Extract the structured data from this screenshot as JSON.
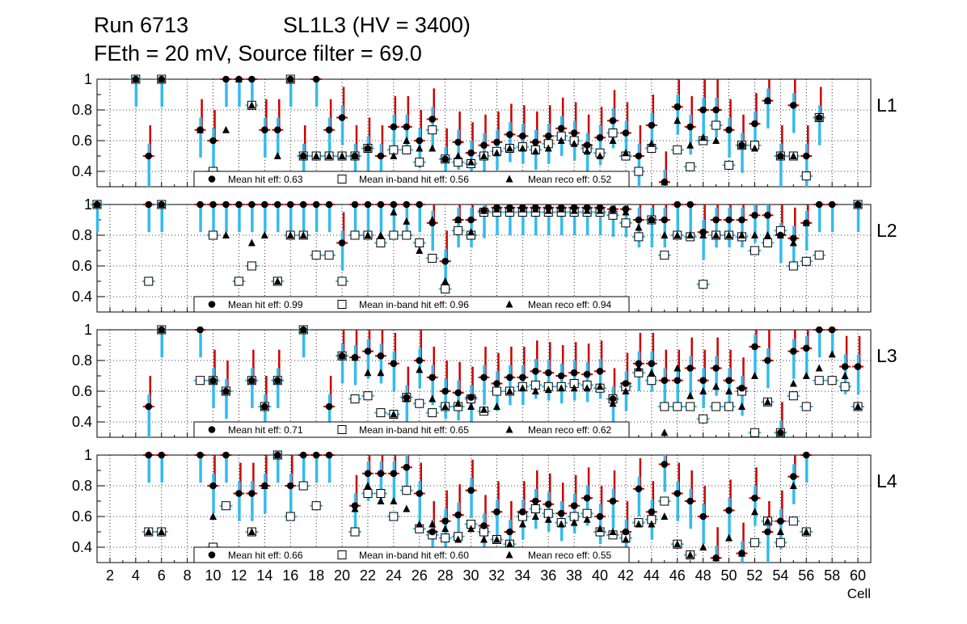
{
  "header": {
    "run": "Run 6713",
    "chamber": "SL1L3 (HV = 3400)",
    "settings": "FEth = 20 mV, Source filter = 69.0"
  },
  "colors": {
    "hit": "#000000",
    "inband": "#ffffff",
    "reco": "#000000",
    "err_red": "#cc0000",
    "err_blue": "#33bbee",
    "err_purple": "#7722aa"
  },
  "chart_data": [
    {
      "type": "scatter",
      "title": "L1",
      "xlabel": "Cell",
      "ylabel": "",
      "xlim": [
        1,
        61
      ],
      "ylim": [
        0.3,
        1.0
      ],
      "yticks": [
        0.4,
        0.6,
        0.8,
        1
      ],
      "xticks": [
        2,
        4,
        6,
        8,
        10,
        12,
        14,
        16,
        18,
        20,
        22,
        24,
        26,
        28,
        30,
        32,
        34,
        36,
        38,
        40,
        42,
        44,
        46,
        48,
        50,
        52,
        54,
        56,
        58,
        60
      ],
      "legend": {
        "hit": "Mean hit  eff: 0.63",
        "inband": "Mean in-band hit eff: 0.56",
        "reco": "Mean reco eff: 0.52"
      },
      "series": [
        {
          "name": "hit eff",
          "values": [
            null,
            null,
            null,
            1,
            0.5,
            1,
            null,
            null,
            0.67,
            0.6,
            1,
            1,
            1,
            0.67,
            0.67,
            1,
            0.5,
            1,
            0.67,
            0.75,
            0.5,
            0.55,
            0.5,
            0.69,
            0.69,
            0.6,
            0.74,
            0.48,
            0.59,
            0.52,
            0.57,
            0.59,
            0.64,
            0.63,
            0.59,
            0.63,
            0.68,
            0.65,
            0.57,
            0.62,
            0.73,
            0.65,
            0.5,
            0.7,
            0.33,
            0.82,
            0.69,
            0.8,
            0.8,
            0.67,
            0.57,
            0.71,
            0.86,
            0.5,
            0.83,
            0.5,
            0.75,
            null,
            null,
            null
          ]
        },
        {
          "name": "in-band hit eff",
          "values": [
            null,
            null,
            null,
            1,
            null,
            1,
            null,
            null,
            null,
            0.4,
            null,
            null,
            0.83,
            null,
            null,
            1,
            0.5,
            0.5,
            0.5,
            0.5,
            0.5,
            0.55,
            null,
            0.54,
            0.54,
            0.46,
            0.67,
            0.48,
            0.46,
            0.45,
            0.5,
            0.53,
            0.55,
            0.56,
            0.54,
            0.58,
            0.63,
            0.6,
            0.55,
            0.52,
            0.65,
            0.5,
            0.4,
            0.55,
            null,
            0.54,
            0.43,
            0.6,
            0.7,
            0.44,
            0.57,
            0.57,
            null,
            0.5,
            0.5,
            0.37,
            0.75,
            null,
            null,
            null
          ]
        },
        {
          "name": "reco eff",
          "values": [
            null,
            null,
            null,
            1,
            null,
            1,
            null,
            null,
            0.67,
            null,
            0.67,
            1,
            0.83,
            null,
            0.5,
            1,
            0.5,
            0.5,
            0.5,
            0.5,
            0.5,
            0.55,
            null,
            0.5,
            0.6,
            0.55,
            0.55,
            0.48,
            0.5,
            0.46,
            0.5,
            0.52,
            0.55,
            0.55,
            0.53,
            0.55,
            0.6,
            0.58,
            0.53,
            0.5,
            0.6,
            0.52,
            null,
            0.58,
            0.33,
            0.73,
            0.57,
            0.62,
            0.6,
            null,
            0.57,
            0.55,
            0.86,
            0.5,
            0.5,
            null,
            0.75,
            null,
            null,
            null
          ]
        }
      ]
    },
    {
      "type": "scatter",
      "title": "L2",
      "xlabel": "Cell",
      "ylabel": "",
      "xlim": [
        1,
        61
      ],
      "ylim": [
        0.3,
        1.0
      ],
      "yticks": [
        0.4,
        0.6,
        0.8,
        1
      ],
      "xticks": [
        2,
        4,
        6,
        8,
        10,
        12,
        14,
        16,
        18,
        20,
        22,
        24,
        26,
        28,
        30,
        32,
        34,
        36,
        38,
        40,
        42,
        44,
        46,
        48,
        50,
        52,
        54,
        56,
        58,
        60
      ],
      "legend": {
        "hit": "Mean hit  eff: 0.99",
        "inband": "Mean in-band hit eff: 0.96",
        "reco": "Mean reco eff: 0.94"
      },
      "series": [
        {
          "name": "hit eff",
          "values": [
            1,
            null,
            null,
            null,
            1,
            1,
            null,
            null,
            1,
            1,
            1,
            1,
            1,
            1,
            1,
            1,
            1,
            1,
            1,
            0.75,
            1,
            1,
            1,
            1,
            1,
            1,
            0.88,
            0.63,
            0.9,
            0.9,
            0.96,
            0.98,
            0.98,
            0.98,
            0.98,
            0.98,
            0.98,
            0.98,
            0.98,
            0.98,
            0.97,
            0.97,
            0.9,
            0.9,
            0.9,
            1,
            1,
            0.82,
            0.9,
            0.9,
            0.9,
            0.93,
            0.93,
            0.8,
            0.78,
            0.88,
            1,
            1,
            null,
            1
          ]
        },
        {
          "name": "in-band hit eff",
          "values": [
            1,
            null,
            null,
            null,
            0.5,
            1,
            null,
            null,
            null,
            0.8,
            null,
            0.5,
            0.6,
            null,
            0.5,
            0.8,
            0.8,
            0.67,
            0.67,
            0.5,
            0.8,
            0.8,
            0.75,
            0.8,
            0.8,
            0.75,
            0.65,
            0.45,
            0.83,
            0.8,
            0.95,
            0.95,
            0.95,
            0.95,
            0.95,
            0.95,
            0.95,
            0.95,
            0.95,
            0.95,
            0.93,
            0.88,
            0.79,
            0.9,
            0.67,
            0.8,
            0.79,
            0.48,
            0.8,
            0.8,
            0.79,
            0.7,
            0.75,
            0.83,
            0.6,
            0.63,
            0.67,
            null,
            null,
            1
          ]
        },
        {
          "name": "reco eff",
          "values": [
            1,
            null,
            null,
            null,
            null,
            1,
            null,
            null,
            null,
            null,
            0.8,
            null,
            0.75,
            0.8,
            0.5,
            0.8,
            0.8,
            null,
            null,
            null,
            null,
            0.8,
            0.8,
            0.95,
            0.89,
            0.7,
            0.9,
            0.5,
            0.9,
            0.82,
            0.96,
            0.97,
            0.97,
            0.97,
            0.97,
            0.96,
            0.97,
            0.96,
            0.96,
            0.96,
            0.96,
            0.95,
            0.85,
            0.9,
            0.8,
            0.8,
            0.8,
            0.8,
            0.8,
            0.8,
            0.8,
            0.8,
            0.8,
            0.8,
            0.75,
            0.88,
            null,
            null,
            null,
            1
          ]
        }
      ]
    },
    {
      "type": "scatter",
      "title": "L3",
      "xlabel": "Cell",
      "ylabel": "",
      "xlim": [
        1,
        61
      ],
      "ylim": [
        0.3,
        1.0
      ],
      "yticks": [
        0.4,
        0.6,
        0.8,
        1
      ],
      "xticks": [
        2,
        4,
        6,
        8,
        10,
        12,
        14,
        16,
        18,
        20,
        22,
        24,
        26,
        28,
        30,
        32,
        34,
        36,
        38,
        40,
        42,
        44,
        46,
        48,
        50,
        52,
        54,
        56,
        58,
        60
      ],
      "legend": {
        "hit": "Mean hit  eff: 0.71",
        "inband": "Mean in-band hit eff: 0.65",
        "reco": "Mean reco eff: 0.62"
      },
      "series": [
        {
          "name": "hit eff",
          "values": [
            null,
            null,
            null,
            null,
            0.5,
            1,
            null,
            null,
            1,
            0.67,
            0.6,
            null,
            0.67,
            0.5,
            0.67,
            null,
            1,
            null,
            0.5,
            0.83,
            0.82,
            0.86,
            0.83,
            0.78,
            0.56,
            0.8,
            0.69,
            0.6,
            0.59,
            0.56,
            0.69,
            0.65,
            0.69,
            0.69,
            0.73,
            0.72,
            0.7,
            0.72,
            0.71,
            0.73,
            0.55,
            0.65,
            0.78,
            0.78,
            0.67,
            0.67,
            0.75,
            0.67,
            0.75,
            0.67,
            0.62,
            0.89,
            0.8,
            0.33,
            0.86,
            0.88,
            1,
            1,
            0.76,
            0.76
          ]
        },
        {
          "name": "in-band hit eff",
          "values": [
            null,
            null,
            null,
            null,
            null,
            1,
            null,
            null,
            0.67,
            0.67,
            0.6,
            null,
            0.67,
            0.5,
            0.67,
            null,
            1,
            null,
            null,
            0.83,
            0.55,
            0.57,
            0.46,
            0.45,
            0.56,
            0.52,
            0.46,
            0.5,
            0.5,
            0.55,
            0.47,
            0.6,
            0.6,
            0.63,
            0.64,
            0.63,
            0.63,
            0.65,
            0.64,
            0.62,
            0.55,
            0.63,
            0.72,
            0.67,
            0.5,
            0.5,
            0.5,
            0.42,
            0.5,
            0.5,
            0.6,
            0.33,
            0.53,
            0.33,
            0.57,
            0.5,
            0.67,
            0.67,
            0.63,
            0.5
          ]
        },
        {
          "name": "reco eff",
          "values": [
            null,
            null,
            null,
            null,
            null,
            1,
            null,
            null,
            null,
            0.67,
            0.6,
            null,
            0.67,
            0.5,
            0.67,
            null,
            1,
            null,
            null,
            0.83,
            0.82,
            0.72,
            0.72,
            0.45,
            0.55,
            0.74,
            0.55,
            0.5,
            0.52,
            0.5,
            0.48,
            0.5,
            0.6,
            0.62,
            0.6,
            0.61,
            0.62,
            0.62,
            0.62,
            0.63,
            0.52,
            0.6,
            0.75,
            0.72,
            0.33,
            0.75,
            0.57,
            0.6,
            0.63,
            0.6,
            0.5,
            0.7,
            0.53,
            0.33,
            0.65,
            0.7,
            0.75,
            0.84,
            0.7,
            0.5
          ]
        }
      ]
    },
    {
      "type": "scatter",
      "title": "L4",
      "xlabel": "Cell",
      "ylabel": "",
      "xlim": [
        1,
        61
      ],
      "ylim": [
        0.3,
        1.0
      ],
      "yticks": [
        0.4,
        0.6,
        0.8,
        1
      ],
      "xticks": [
        2,
        4,
        6,
        8,
        10,
        12,
        14,
        16,
        18,
        20,
        22,
        24,
        26,
        28,
        30,
        32,
        34,
        36,
        38,
        40,
        42,
        44,
        46,
        48,
        50,
        52,
        54,
        56,
        58,
        60
      ],
      "legend": {
        "hit": "Mean hit  eff: 0.66",
        "inband": "Mean in-band hit eff: 0.60",
        "reco": "Mean reco eff: 0.55"
      },
      "series": [
        {
          "name": "hit eff",
          "values": [
            null,
            null,
            null,
            null,
            1,
            1,
            null,
            null,
            1,
            0.8,
            1,
            0.75,
            0.75,
            0.8,
            1,
            0.8,
            1,
            1,
            1,
            null,
            0.67,
            0.88,
            0.88,
            0.88,
            0.92,
            0.75,
            0.5,
            0.57,
            0.61,
            0.77,
            0.54,
            0.63,
            0.5,
            0.63,
            0.7,
            0.68,
            0.62,
            0.67,
            0.72,
            0.6,
            0.7,
            0.5,
            0.78,
            0.63,
            0.94,
            0.75,
            0.7,
            0.6,
            0.33,
            0.64,
            0.36,
            0.72,
            0.5,
            0.57,
            0.86,
            1,
            null,
            null,
            null,
            null
          ]
        },
        {
          "name": "in-band hit eff",
          "values": [
            null,
            null,
            null,
            null,
            0.5,
            0.5,
            null,
            null,
            null,
            0.4,
            0.67,
            null,
            0.5,
            null,
            1,
            0.6,
            0.8,
            0.67,
            null,
            null,
            0.5,
            0.75,
            0.75,
            0.6,
            0.77,
            0.52,
            0.48,
            0.46,
            0.47,
            0.55,
            0.5,
            0.45,
            0.42,
            0.6,
            0.65,
            0.62,
            0.56,
            0.6,
            0.62,
            0.5,
            0.48,
            0.46,
            0.56,
            0.58,
            0.7,
            0.42,
            0.35,
            null,
            null,
            null,
            null,
            0.43,
            0.57,
            0.43,
            0.57,
            0.5,
            null,
            null,
            null,
            null
          ]
        },
        {
          "name": "reco eff",
          "values": [
            null,
            null,
            null,
            null,
            0.5,
            0.5,
            null,
            null,
            null,
            0.6,
            null,
            null,
            0.5,
            0.8,
            1,
            null,
            null,
            null,
            null,
            null,
            0.65,
            0.8,
            0.7,
            0.7,
            0.65,
            0.55,
            0.55,
            0.52,
            0.45,
            0.52,
            0.45,
            0.45,
            0.42,
            0.55,
            0.6,
            0.58,
            0.55,
            0.56,
            0.58,
            0.52,
            0.5,
            0.45,
            0.55,
            0.55,
            0.6,
            0.42,
            0.35,
            0.4,
            0.33,
            0.46,
            0.36,
            0.63,
            0.57,
            0.5,
            0.8,
            0.5,
            null,
            null,
            null,
            null
          ]
        }
      ]
    }
  ]
}
